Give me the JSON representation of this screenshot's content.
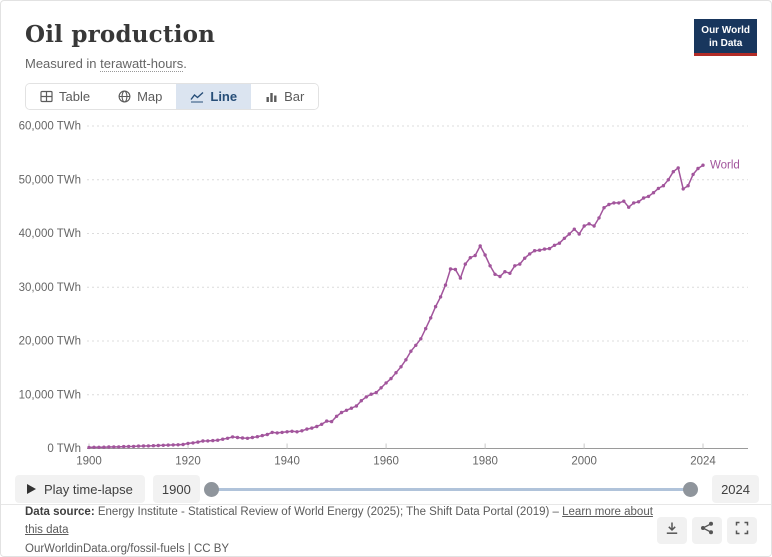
{
  "header": {
    "title": "Oil production",
    "subtitle_prefix": "Measured in ",
    "subtitle_link": "terawatt-hours",
    "subtitle_suffix": ".",
    "logo_line1": "Our World",
    "logo_line2": "in Data"
  },
  "tabs": [
    {
      "label": "Table",
      "icon": "table-icon",
      "selected": false
    },
    {
      "label": "Map",
      "icon": "globe-icon",
      "selected": false
    },
    {
      "label": "Line",
      "icon": "line-chart-icon",
      "selected": true
    },
    {
      "label": "Bar",
      "icon": "bar-chart-icon",
      "selected": false
    }
  ],
  "chart_data": {
    "type": "line",
    "title": "Oil production",
    "unit": "TWh",
    "xlim": [
      1900,
      2024
    ],
    "ylim": [
      0,
      60000
    ],
    "grid": "horizontal-dashed",
    "legend_position": "end-of-line-label",
    "xticks": [
      1900,
      1920,
      1940,
      1960,
      1980,
      2000,
      2024
    ],
    "xtick_labels": [
      "1900",
      "1920",
      "1940",
      "1960",
      "1980",
      "2000",
      "2024"
    ],
    "yticks": [
      0,
      10000,
      20000,
      30000,
      40000,
      50000,
      60000
    ],
    "ytick_labels": [
      "0 TWh",
      "10,000 TWh",
      "20,000 TWh",
      "30,000 TWh",
      "40,000 TWh",
      "50,000 TWh",
      "60,000 TWh"
    ],
    "series": [
      {
        "name": "World",
        "color": "#a2559c",
        "x": [
          1900,
          1901,
          1902,
          1903,
          1904,
          1905,
          1906,
          1907,
          1908,
          1909,
          1910,
          1911,
          1912,
          1913,
          1914,
          1915,
          1916,
          1917,
          1918,
          1919,
          1920,
          1921,
          1922,
          1923,
          1924,
          1925,
          1926,
          1927,
          1928,
          1929,
          1930,
          1931,
          1932,
          1933,
          1934,
          1935,
          1936,
          1937,
          1938,
          1939,
          1940,
          1941,
          1942,
          1943,
          1944,
          1945,
          1946,
          1947,
          1948,
          1949,
          1950,
          1951,
          1952,
          1953,
          1954,
          1955,
          1956,
          1957,
          1958,
          1959,
          1960,
          1961,
          1962,
          1963,
          1964,
          1965,
          1966,
          1967,
          1968,
          1969,
          1970,
          1971,
          1972,
          1973,
          1974,
          1975,
          1976,
          1977,
          1978,
          1979,
          1980,
          1981,
          1982,
          1983,
          1984,
          1985,
          1986,
          1987,
          1988,
          1989,
          1990,
          1991,
          1992,
          1993,
          1994,
          1995,
          1996,
          1997,
          1998,
          1999,
          2000,
          2001,
          2002,
          2003,
          2004,
          2005,
          2006,
          2007,
          2008,
          2009,
          2010,
          2011,
          2012,
          2013,
          2014,
          2015,
          2016,
          2017,
          2018,
          2019,
          2020,
          2021,
          2022,
          2023,
          2024
        ],
        "values": [
          200,
          220,
          230,
          250,
          270,
          290,
          300,
          350,
          370,
          400,
          440,
          460,
          480,
          520,
          550,
          590,
          630,
          670,
          690,
          750,
          950,
          1050,
          1200,
          1400,
          1420,
          1470,
          1540,
          1730,
          1900,
          2150,
          2050,
          1950,
          1900,
          2050,
          2200,
          2400,
          2600,
          3000,
          2900,
          3000,
          3100,
          3200,
          3100,
          3300,
          3600,
          3800,
          4100,
          4500,
          5100,
          5000,
          6000,
          6700,
          7100,
          7500,
          7900,
          8900,
          9600,
          10100,
          10400,
          11300,
          12200,
          13000,
          14100,
          15200,
          16500,
          18100,
          19200,
          20400,
          22300,
          24300,
          26400,
          28200,
          30400,
          33400,
          33300,
          31700,
          34300,
          35500,
          35900,
          37700,
          36000,
          34000,
          32400,
          32000,
          32900,
          32600,
          34000,
          34300,
          35400,
          36200,
          36800,
          36900,
          37100,
          37200,
          37800,
          38200,
          39100,
          39900,
          40800,
          39900,
          41400,
          41800,
          41400,
          42900,
          44800,
          45400,
          45700,
          45700,
          46000,
          44900,
          45700,
          45900,
          46600,
          46900,
          47600,
          48400,
          48900,
          50000,
          51500,
          52200,
          48300,
          48900,
          51000,
          52100,
          52700
        ]
      }
    ]
  },
  "timeline": {
    "play_label": "Play time-lapse",
    "start_label": "1900",
    "end_label": "2024"
  },
  "footer": {
    "datasource_label": "Data source:",
    "datasource_text": " Energy Institute - Statistical Review of World Energy (2025); The Shift Data Portal (2019) – ",
    "learn_more": "Learn more about this data",
    "citation": "OurWorldinData.org/fossil-fuels | CC BY",
    "actions": [
      "download-icon",
      "share-icon",
      "fullscreen-icon"
    ]
  },
  "colors": {
    "accent": "#a2559c",
    "logo_bg": "#18365d",
    "logo_red": "#b22c27",
    "tab_selected_bg": "#dbe4f0",
    "tab_selected_text": "#274e78",
    "gridline": "#dcdcdc",
    "axis": "#9a9a9a",
    "tick_text": "#666666",
    "slider_track": "#b0c3da",
    "slider_handle": "#8f959c"
  }
}
